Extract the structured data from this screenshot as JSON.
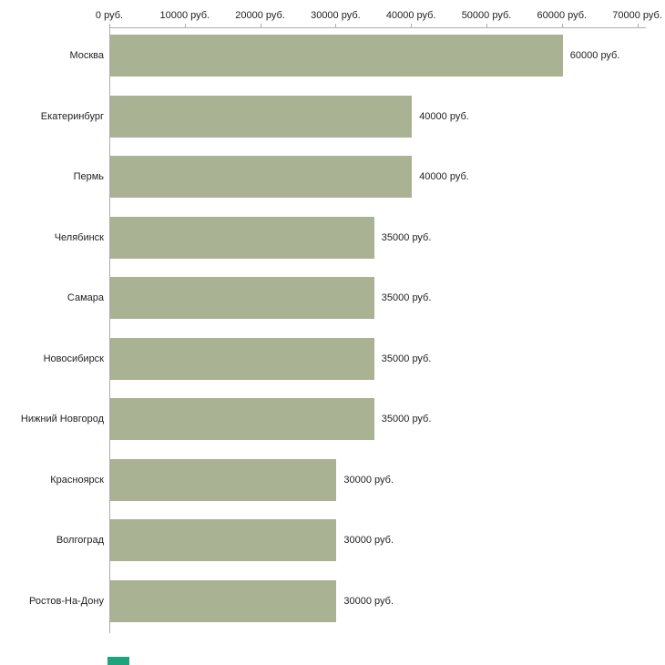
{
  "chart_data": {
    "type": "bar",
    "orientation": "horizontal",
    "categories": [
      "Москва",
      "Екатеринбург",
      "Пермь",
      "Челябинск",
      "Самара",
      "Новосибирск",
      "Нижний Новгород",
      "Красноярск",
      "Волгоград",
      "Ростов-На-Дону"
    ],
    "values": [
      60000,
      40000,
      40000,
      35000,
      35000,
      35000,
      35000,
      30000,
      30000,
      30000
    ],
    "bar_labels": [
      "60000 руб.",
      "40000 руб.",
      "40000 руб.",
      "35000 руб.",
      "35000 руб.",
      "35000 руб.",
      "35000 руб.",
      "30000 руб.",
      "30000 руб.",
      "30000 руб."
    ],
    "x_ticks": [
      "0 руб.",
      "10000 руб.",
      "20000 руб.",
      "30000 руб.",
      "40000 руб.",
      "50000 руб.",
      "60000 руб.",
      "70000 руб."
    ],
    "x_tick_values": [
      0,
      10000,
      20000,
      30000,
      40000,
      50000,
      60000,
      70000
    ],
    "xlim": [
      0,
      70000
    ],
    "title": "",
    "xlabel": "",
    "ylabel": "",
    "grid": false,
    "legend": "none",
    "bar_color": "#a9b293",
    "axis_color": "#adadad",
    "text_color": "#222222"
  },
  "watermark": {
    "color": "#1fa37c"
  }
}
